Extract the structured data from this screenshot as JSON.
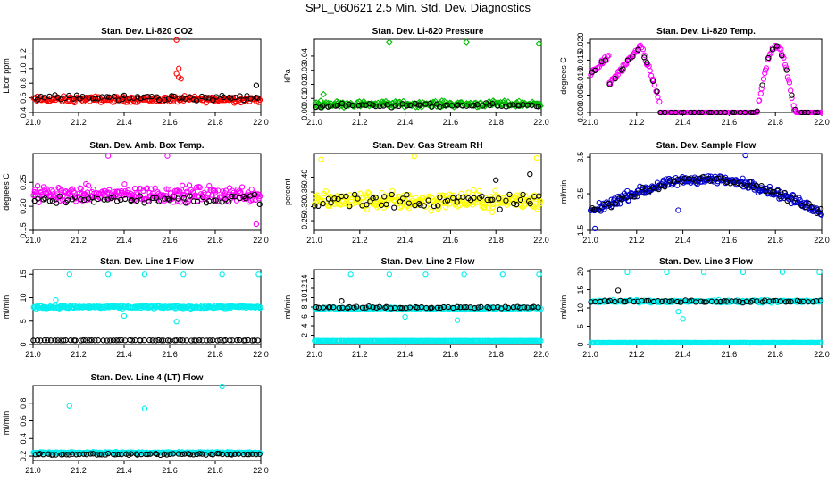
{
  "page": {
    "title": "SPL_060621  2.5 Min. Std. Dev. Diagnostics"
  },
  "chart_data": [
    {
      "type": "scatter",
      "title": "Stan. Dev. Li-820 CO2",
      "ylabel": "Licor ppm",
      "xlim": [
        21.0,
        22.0
      ],
      "xticks": [
        "21.0",
        "21.2",
        "21.4",
        "21.6",
        "21.8",
        "22.0"
      ],
      "ylim": [
        0.4,
        1.4
      ],
      "yticks": [
        "0.4",
        "0.6",
        "0.8",
        "1.0",
        "1.2"
      ],
      "series": [
        {
          "name": "red",
          "color": "#ff0000",
          "marker": "circle",
          "base": 0.58,
          "spread": 0.06,
          "n": 220,
          "outliers": [
            [
              21.63,
              1.39
            ],
            [
              21.64,
              1.0
            ],
            [
              21.63,
              0.93
            ],
            [
              21.64,
              0.88
            ],
            [
              21.65,
              0.86
            ]
          ]
        },
        {
          "name": "black",
          "color": "#000000",
          "marker": "circle",
          "base": 0.6,
          "spread": 0.06,
          "n": 60,
          "outliers": [
            [
              21.98,
              0.77
            ]
          ]
        }
      ]
    },
    {
      "type": "scatter",
      "title": "Stan. Dev. Li-820 Pressure",
      "ylabel": "kPa",
      "xlim": [
        21.0,
        22.0
      ],
      "xticks": [
        "21.0",
        "21.2",
        "21.4",
        "21.6",
        "21.8",
        "22.0"
      ],
      "ylim": [
        0.0,
        0.052
      ],
      "yticks": [
        "0.00",
        "0.01",
        "0.02",
        "0.03",
        "0.04"
      ],
      "series": [
        {
          "name": "green",
          "color": "#00bb00",
          "marker": "diamond",
          "base": 0.006,
          "spread": 0.003,
          "n": 220,
          "outliers": [
            [
              21.04,
              0.013
            ],
            [
              21.33,
              0.05
            ],
            [
              21.67,
              0.05
            ],
            [
              21.99,
              0.049
            ]
          ]
        },
        {
          "name": "black",
          "color": "#000000",
          "marker": "circle",
          "base": 0.005,
          "spread": 0.002,
          "n": 60,
          "outliers": []
        }
      ]
    },
    {
      "type": "scatter",
      "title": "Stan. Dev. Li-820 Temp.",
      "ylabel": "degrees C",
      "xlim": [
        21.0,
        22.0
      ],
      "xticks": [
        "21.0",
        "21.2",
        "21.4",
        "21.6",
        "21.8",
        "22.0"
      ],
      "ylim": [
        0.0,
        0.021
      ],
      "yticks": [
        "0.000",
        "0.005",
        "0.010",
        "0.015",
        "0.020"
      ],
      "series": [
        {
          "name": "magenta",
          "color": "#ff00ff",
          "marker": "circle",
          "shape": "temp",
          "n": 200,
          "outliers": []
        },
        {
          "name": "black",
          "color": "#000000",
          "marker": "circle",
          "shape": "temp",
          "n": 50,
          "outliers": []
        }
      ]
    },
    {
      "type": "scatter",
      "title": "Stan. Dev. Amb. Box Temp.",
      "ylabel": "degrees C",
      "xlim": [
        21.0,
        22.0
      ],
      "xticks": [
        "21.0",
        "21.2",
        "21.4",
        "21.6",
        "21.8",
        "22.0"
      ],
      "ylim": [
        0.15,
        0.31
      ],
      "yticks": [
        "0.15",
        "0.20",
        "0.25"
      ],
      "series": [
        {
          "name": "magenta",
          "color": "#ff00ff",
          "marker": "circle",
          "base": 0.225,
          "spread": 0.025,
          "n": 260,
          "outliers": [
            [
              21.33,
              0.305
            ],
            [
              21.59,
              0.305
            ],
            [
              21.98,
              0.163
            ]
          ]
        },
        {
          "name": "black",
          "color": "#000000",
          "marker": "circle",
          "base": 0.215,
          "spread": 0.015,
          "n": 60,
          "outliers": []
        }
      ]
    },
    {
      "type": "scatter",
      "title": "Stan. Dev. Gas Stream RH",
      "ylabel": "percent",
      "xlim": [
        21.0,
        22.0
      ],
      "xticks": [
        "21.0",
        "21.2",
        "21.4",
        "21.6",
        "21.8",
        "22.0"
      ],
      "ylim": [
        0.22,
        0.48
      ],
      "yticks": [
        "0.25",
        "0.30",
        "0.35",
        "0.40"
      ],
      "series": [
        {
          "name": "yellow",
          "color": "#ffff00",
          "marker": "circle",
          "base": 0.32,
          "spread": 0.045,
          "n": 260,
          "outliers": [
            [
              21.44,
              0.47
            ],
            [
              21.98,
              0.465
            ],
            [
              21.03,
              0.46
            ]
          ]
        },
        {
          "name": "black",
          "color": "#000000",
          "marker": "circle",
          "base": 0.32,
          "spread": 0.04,
          "n": 60,
          "outliers": [
            [
              21.95,
              0.41
            ],
            [
              21.8,
              0.39
            ]
          ]
        }
      ]
    },
    {
      "type": "scatter",
      "title": "Stan. Dev. Sample Flow",
      "ylabel": "ml/min",
      "xlim": [
        21.0,
        22.0
      ],
      "xticks": [
        "21.0",
        "21.2",
        "21.4",
        "21.6",
        "21.8",
        "22.0"
      ],
      "ylim": [
        1.5,
        3.6
      ],
      "yticks": [
        "1.5",
        "2.5",
        "3.5"
      ],
      "series": [
        {
          "name": "blue",
          "color": "#0000cc",
          "marker": "circle",
          "shape": "arch",
          "n": 260,
          "outliers": [
            [
              21.67,
              3.55
            ],
            [
              21.38,
              2.05
            ],
            [
              21.02,
              1.55
            ]
          ]
        },
        {
          "name": "black",
          "color": "#000000",
          "marker": "circle",
          "shape": "arch",
          "n": 60,
          "outliers": []
        }
      ]
    },
    {
      "type": "scatter",
      "title": "Stan. Dev. Line 1 Flow",
      "ylabel": "ml/min",
      "xlim": [
        21.0,
        22.0
      ],
      "xticks": [
        "21.0",
        "21.2",
        "21.4",
        "21.6",
        "21.8",
        "22.0"
      ],
      "ylim": [
        0,
        16
      ],
      "yticks": [
        "0",
        "5",
        "10",
        "15"
      ],
      "series": [
        {
          "name": "cyan",
          "color": "#00eeee",
          "marker": "circle",
          "base": 8.0,
          "spread": 0.45,
          "n": 260,
          "outliers": [
            [
              21.16,
              15.0
            ],
            [
              21.33,
              15.0
            ],
            [
              21.49,
              15.0
            ],
            [
              21.66,
              15.0
            ],
            [
              21.83,
              15.0
            ],
            [
              21.99,
              15.0
            ],
            [
              21.4,
              6.1
            ],
            [
              21.63,
              4.9
            ],
            [
              21.1,
              9.5
            ]
          ]
        },
        {
          "name": "black",
          "color": "#000000",
          "marker": "circle",
          "base": 0.9,
          "spread": 0.08,
          "n": 70,
          "outliers": []
        }
      ]
    },
    {
      "type": "scatter",
      "title": "Stan. Dev. Line 2 Flow",
      "ylabel": "ml/min",
      "xlim": [
        21.0,
        22.0
      ],
      "xticks": [
        "21.0",
        "21.2",
        "21.4",
        "21.6",
        "21.8",
        "22.0"
      ],
      "ylim": [
        0,
        16
      ],
      "yticks": [
        "2",
        "4",
        "6",
        "8",
        "10",
        "12",
        "14"
      ],
      "series": [
        {
          "name": "cyan",
          "color": "#00eeee",
          "marker": "circle",
          "base": 0.8,
          "spread": 0.05,
          "n": 260,
          "outliers": [
            [
              21.16,
              15.0
            ],
            [
              21.33,
              15.0
            ],
            [
              21.49,
              15.0
            ],
            [
              21.66,
              15.0
            ],
            [
              21.83,
              15.0
            ],
            [
              21.99,
              15.0
            ],
            [
              21.4,
              5.9
            ],
            [
              21.63,
              5.2
            ]
          ]
        },
        {
          "name": "cyan",
          "color": "#00eeee",
          "marker": "circle",
          "base": 7.7,
          "spread": 0.35,
          "n": 220,
          "outliers": []
        },
        {
          "name": "black",
          "color": "#000000",
          "marker": "circle",
          "base": 7.9,
          "spread": 0.3,
          "n": 60,
          "outliers": [
            [
              21.12,
              9.3
            ]
          ]
        }
      ]
    },
    {
      "type": "scatter",
      "title": "Stan. Dev. Line 3 Flow",
      "ylabel": "ml/min",
      "xlim": [
        21.0,
        22.0
      ],
      "xticks": [
        "21.0",
        "21.2",
        "21.4",
        "21.6",
        "21.8",
        "22.0"
      ],
      "ylim": [
        0,
        20.5
      ],
      "yticks": [
        "0",
        "5",
        "10",
        "15",
        "20"
      ],
      "series": [
        {
          "name": "cyan",
          "color": "#00eeee",
          "marker": "circle",
          "base": 0.5,
          "spread": 0.05,
          "n": 260,
          "outliers": [
            [
              21.33,
              19.8
            ],
            [
              21.49,
              19.8
            ],
            [
              21.66,
              19.8
            ],
            [
              21.83,
              19.8
            ],
            [
              21.99,
              19.8
            ],
            [
              21.16,
              19.8
            ],
            [
              21.4,
              7.0
            ],
            [
              21.38,
              9.0
            ]
          ]
        },
        {
          "name": "cyan",
          "color": "#00eeee",
          "marker": "circle",
          "base": 11.8,
          "spread": 0.5,
          "n": 220,
          "outliers": []
        },
        {
          "name": "black",
          "color": "#000000",
          "marker": "circle",
          "base": 11.8,
          "spread": 0.4,
          "n": 60,
          "outliers": [
            [
              21.12,
              14.8
            ]
          ]
        }
      ]
    },
    {
      "type": "scatter",
      "title": "Stan. Dev. Line 4 (LT) Flow",
      "ylabel": "ml/min",
      "xlim": [
        21.0,
        22.0
      ],
      "xticks": [
        "21.0",
        "21.2",
        "21.4",
        "21.6",
        "21.8",
        "22.0"
      ],
      "ylim": [
        0.15,
        1.0
      ],
      "yticks": [
        "0.2",
        "0.4",
        "0.6",
        "0.8"
      ],
      "series": [
        {
          "name": "cyan",
          "color": "#00eeee",
          "marker": "circle",
          "base": 0.24,
          "spread": 0.012,
          "n": 260,
          "outliers": [
            [
              21.16,
              0.77
            ],
            [
              21.49,
              0.74
            ],
            [
              21.83,
              0.99
            ]
          ]
        },
        {
          "name": "black",
          "color": "#000000",
          "marker": "circle",
          "base": 0.22,
          "spread": 0.012,
          "n": 70,
          "outliers": []
        }
      ]
    }
  ]
}
